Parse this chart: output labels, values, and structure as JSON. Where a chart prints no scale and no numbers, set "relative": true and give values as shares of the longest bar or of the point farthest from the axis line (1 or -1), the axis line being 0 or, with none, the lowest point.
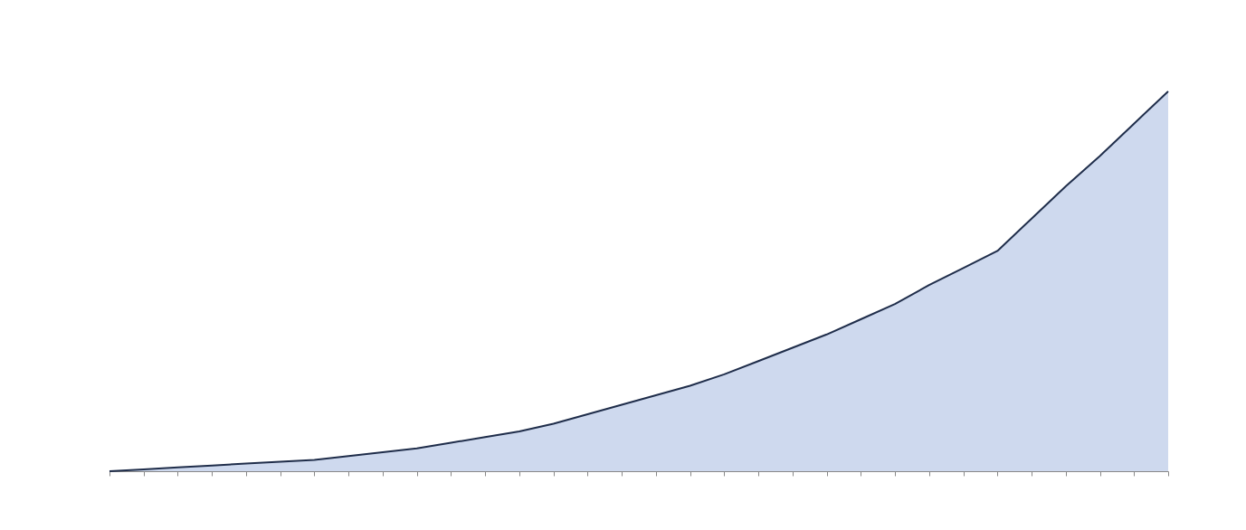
{
  "chart_data": {
    "type": "area",
    "relative": true,
    "categories": [
      null,
      null,
      null,
      null,
      null,
      null,
      null,
      null,
      null,
      null,
      null,
      null,
      null,
      null,
      null,
      null,
      null,
      null,
      null,
      null,
      null,
      null,
      null,
      null,
      null,
      null,
      null,
      null,
      null,
      null,
      null,
      null
    ],
    "series": [
      {
        "color": "#c9d5ec",
        "values": [
          0.0,
          0.005,
          0.01,
          0.015,
          0.02,
          0.025,
          0.03,
          0.04,
          0.05,
          0.06,
          0.075,
          0.09,
          0.105,
          0.125,
          0.15,
          0.175,
          0.2,
          0.225,
          0.255,
          0.29,
          0.325,
          0.36,
          0.4,
          0.44,
          0.49,
          0.535,
          0.58,
          0.665,
          0.75,
          0.83,
          0.915,
          1.0
        ]
      }
    ]
  }
}
